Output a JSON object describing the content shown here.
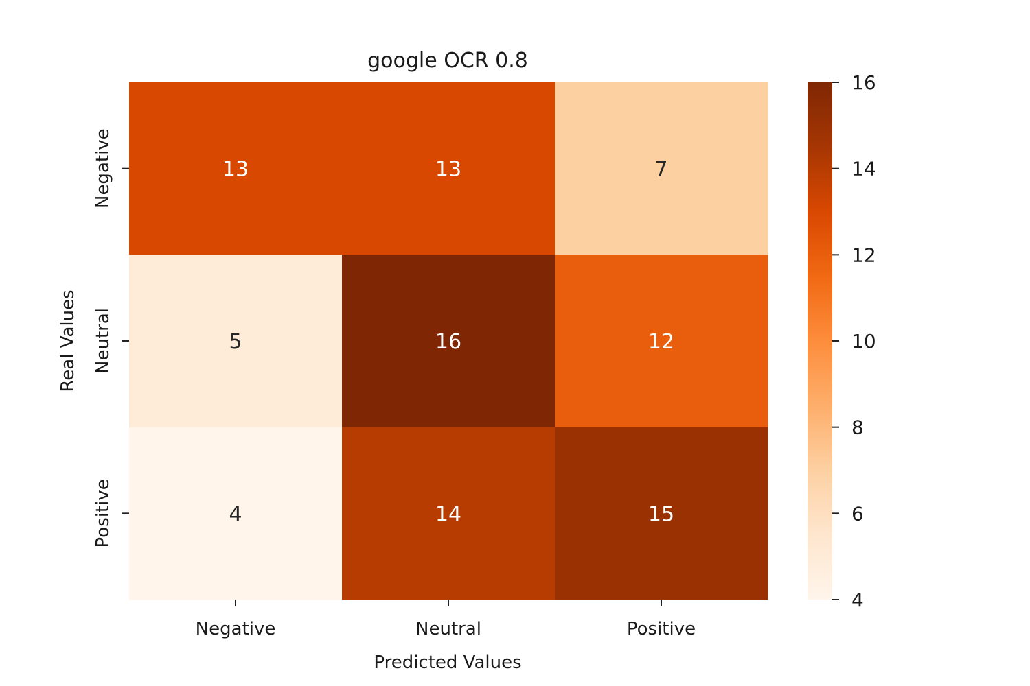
{
  "chart_data": {
    "type": "heatmap",
    "title": "google OCR 0.8",
    "xlabel": "Predicted Values",
    "ylabel": "Real Values",
    "x_categories": [
      "Negative",
      "Neutral",
      "Positive"
    ],
    "y_categories": [
      "Negative",
      "Neutral",
      "Positive"
    ],
    "values": [
      [
        13,
        13,
        7
      ],
      [
        5,
        16,
        12
      ],
      [
        4,
        14,
        15
      ]
    ],
    "colormap": "Oranges",
    "color_range": [
      4,
      16
    ],
    "colorbar_ticks": [
      "4",
      "6",
      "8",
      "10",
      "12",
      "14",
      "16"
    ],
    "grid": false,
    "colorbar_placement": "right"
  }
}
